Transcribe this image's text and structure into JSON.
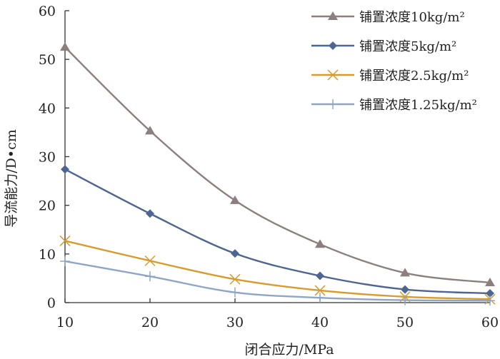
{
  "chart_data": {
    "type": "line",
    "xlabel": "闭合应力/MPa",
    "ylabel": "导流能力/D•cm",
    "x": [
      10,
      20,
      30,
      40,
      50,
      60
    ],
    "xticks": [
      "10",
      "20",
      "30",
      "40",
      "50",
      "60"
    ],
    "yticks": [
      "0",
      "10",
      "20",
      "30",
      "40",
      "50",
      "60"
    ],
    "xlim": [
      10,
      60
    ],
    "ylim": [
      0,
      60
    ],
    "grid": false,
    "legend_position": "top-right",
    "series": [
      {
        "name": "铺置浓度10kg/m²",
        "values": [
          52.5,
          35.3,
          21.0,
          12.0,
          6.1,
          4.1
        ],
        "color": "#8c7f80",
        "marker": "triangle"
      },
      {
        "name": "铺置浓度5kg/m²",
        "values": [
          27.4,
          18.3,
          10.1,
          5.5,
          2.7,
          1.9
        ],
        "color": "#4d6591",
        "marker": "diamond"
      },
      {
        "name": "铺置浓度2.5kg/m²",
        "values": [
          12.7,
          8.6,
          4.8,
          2.5,
          1.2,
          0.7
        ],
        "color": "#d99a2b",
        "marker": "x"
      },
      {
        "name": "铺置浓度1.25kg/m²",
        "values": [
          8.5,
          5.4,
          2.1,
          1.0,
          0.5,
          0.4
        ],
        "color": "#8fa5c8",
        "marker": "plus"
      }
    ]
  }
}
